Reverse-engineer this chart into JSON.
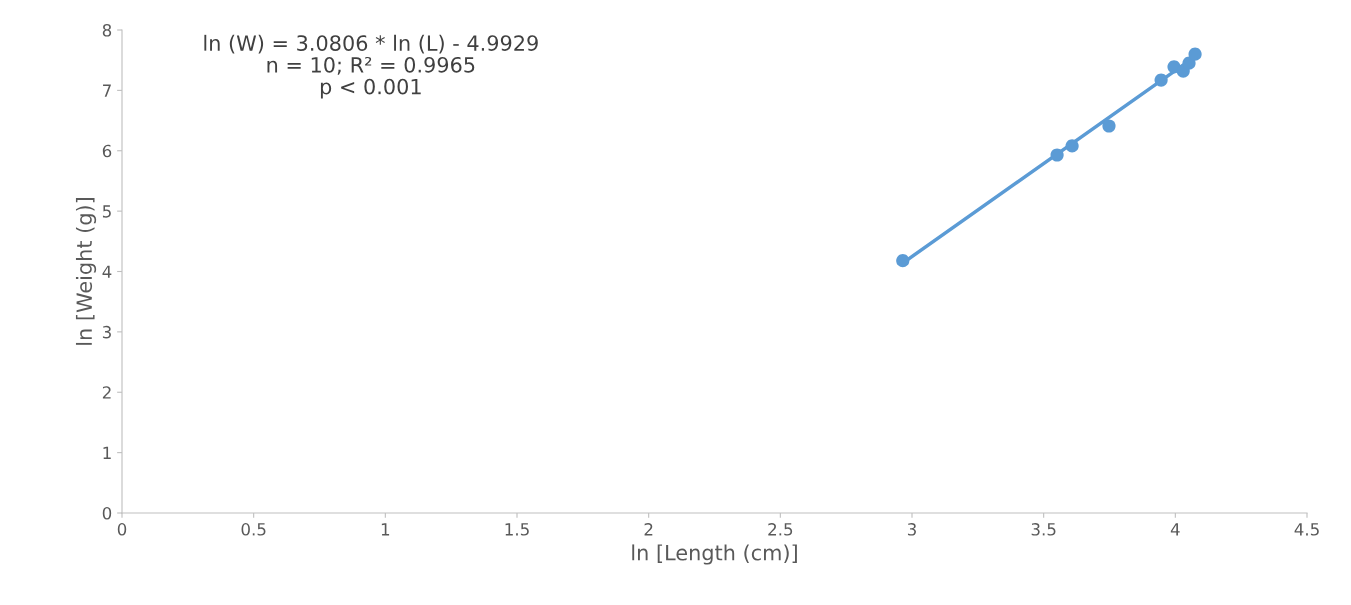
{
  "chart_data": {
    "type": "scatter",
    "xlabel": "ln [Length (cm)]",
    "ylabel": "ln [Weight (g)]",
    "annotations": [
      "ln (W) = 3.0806 * ln (L) - 4.9929\nn = 10; R² = 0.9965\np < 0.001"
    ],
    "series": [
      {
        "type": "line",
        "marker": "none",
        "color": "#5b9bd5",
        "x": [
          2.965,
          4.075
        ],
        "values": [
          4.14,
          7.56
        ]
      },
      {
        "color": "#5b9bd5",
        "x": [
          2.965,
          3.551,
          3.608,
          3.748,
          3.946,
          3.995,
          4.03,
          4.04,
          4.052,
          4.075
        ],
        "values": [
          4.18,
          5.93,
          6.08,
          6.41,
          7.17,
          7.39,
          7.32,
          null,
          7.45,
          7.6
        ]
      }
    ],
    "marker": "circle",
    "xlim": [
      0,
      4.5
    ],
    "xticks": [
      0,
      0.5,
      1,
      1.5,
      2,
      2.5,
      3,
      3.5,
      4,
      4.5
    ],
    "ylim": [
      0,
      8
    ],
    "yticks": [
      0,
      1,
      2,
      3,
      4,
      5,
      6,
      7,
      8
    ],
    "grid": false
  }
}
